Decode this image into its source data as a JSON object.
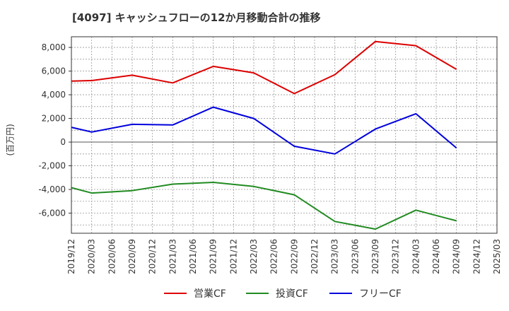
{
  "chart_data": {
    "type": "line",
    "title": "[4097]  キャッシュフローの12か月移動合計の推移",
    "ylabel": "(百万円)",
    "xlabel": "",
    "ylim": [
      -7700,
      8900
    ],
    "yticks": [
      8000,
      6000,
      4000,
      2000,
      0,
      -2000,
      -4000,
      -6000
    ],
    "ytick_labels": [
      "8,000",
      "6,000",
      "4,000",
      "2,000",
      "0",
      "-2,000",
      "-4,000",
      "-6,000"
    ],
    "categories": [
      "2019/12",
      "2020/03",
      "2020/06",
      "2020/09",
      "2020/12",
      "2021/03",
      "2021/06",
      "2021/09",
      "2021/12",
      "2022/03",
      "2022/06",
      "2022/09",
      "2022/12",
      "2023/03",
      "2023/06",
      "2023/09",
      "2023/12",
      "2024/03",
      "2024/06",
      "2024/09",
      "2024/12",
      "2025/03"
    ],
    "series": [
      {
        "name": "営業CF",
        "color": "#dd0000",
        "points": [
          [
            "2019/12",
            5150
          ],
          [
            "2020/03",
            5200
          ],
          [
            "2020/09",
            5650
          ],
          [
            "2021/03",
            5000
          ],
          [
            "2021/09",
            6400
          ],
          [
            "2022/03",
            5850
          ],
          [
            "2022/09",
            4100
          ],
          [
            "2023/03",
            5700
          ],
          [
            "2023/09",
            8500
          ],
          [
            "2024/03",
            8150
          ],
          [
            "2024/09",
            6150
          ]
        ]
      },
      {
        "name": "投資CF",
        "color": "#228b22",
        "points": [
          [
            "2019/12",
            -3850
          ],
          [
            "2020/03",
            -4300
          ],
          [
            "2020/09",
            -4100
          ],
          [
            "2021/03",
            -3550
          ],
          [
            "2021/09",
            -3400
          ],
          [
            "2022/03",
            -3750
          ],
          [
            "2022/09",
            -4450
          ],
          [
            "2023/03",
            -6700
          ],
          [
            "2023/09",
            -7350
          ],
          [
            "2024/03",
            -5750
          ],
          [
            "2024/09",
            -6650
          ]
        ]
      },
      {
        "name": "フリーCF",
        "color": "#0000dd",
        "points": [
          [
            "2019/12",
            1250
          ],
          [
            "2020/03",
            850
          ],
          [
            "2020/09",
            1500
          ],
          [
            "2021/03",
            1450
          ],
          [
            "2021/09",
            2950
          ],
          [
            "2022/03",
            2000
          ],
          [
            "2022/09",
            -350
          ],
          [
            "2023/03",
            -1000
          ],
          [
            "2023/09",
            1100
          ],
          [
            "2024/03",
            2400
          ],
          [
            "2024/09",
            -500
          ]
        ]
      }
    ],
    "grid": true,
    "legend": "bottom"
  }
}
